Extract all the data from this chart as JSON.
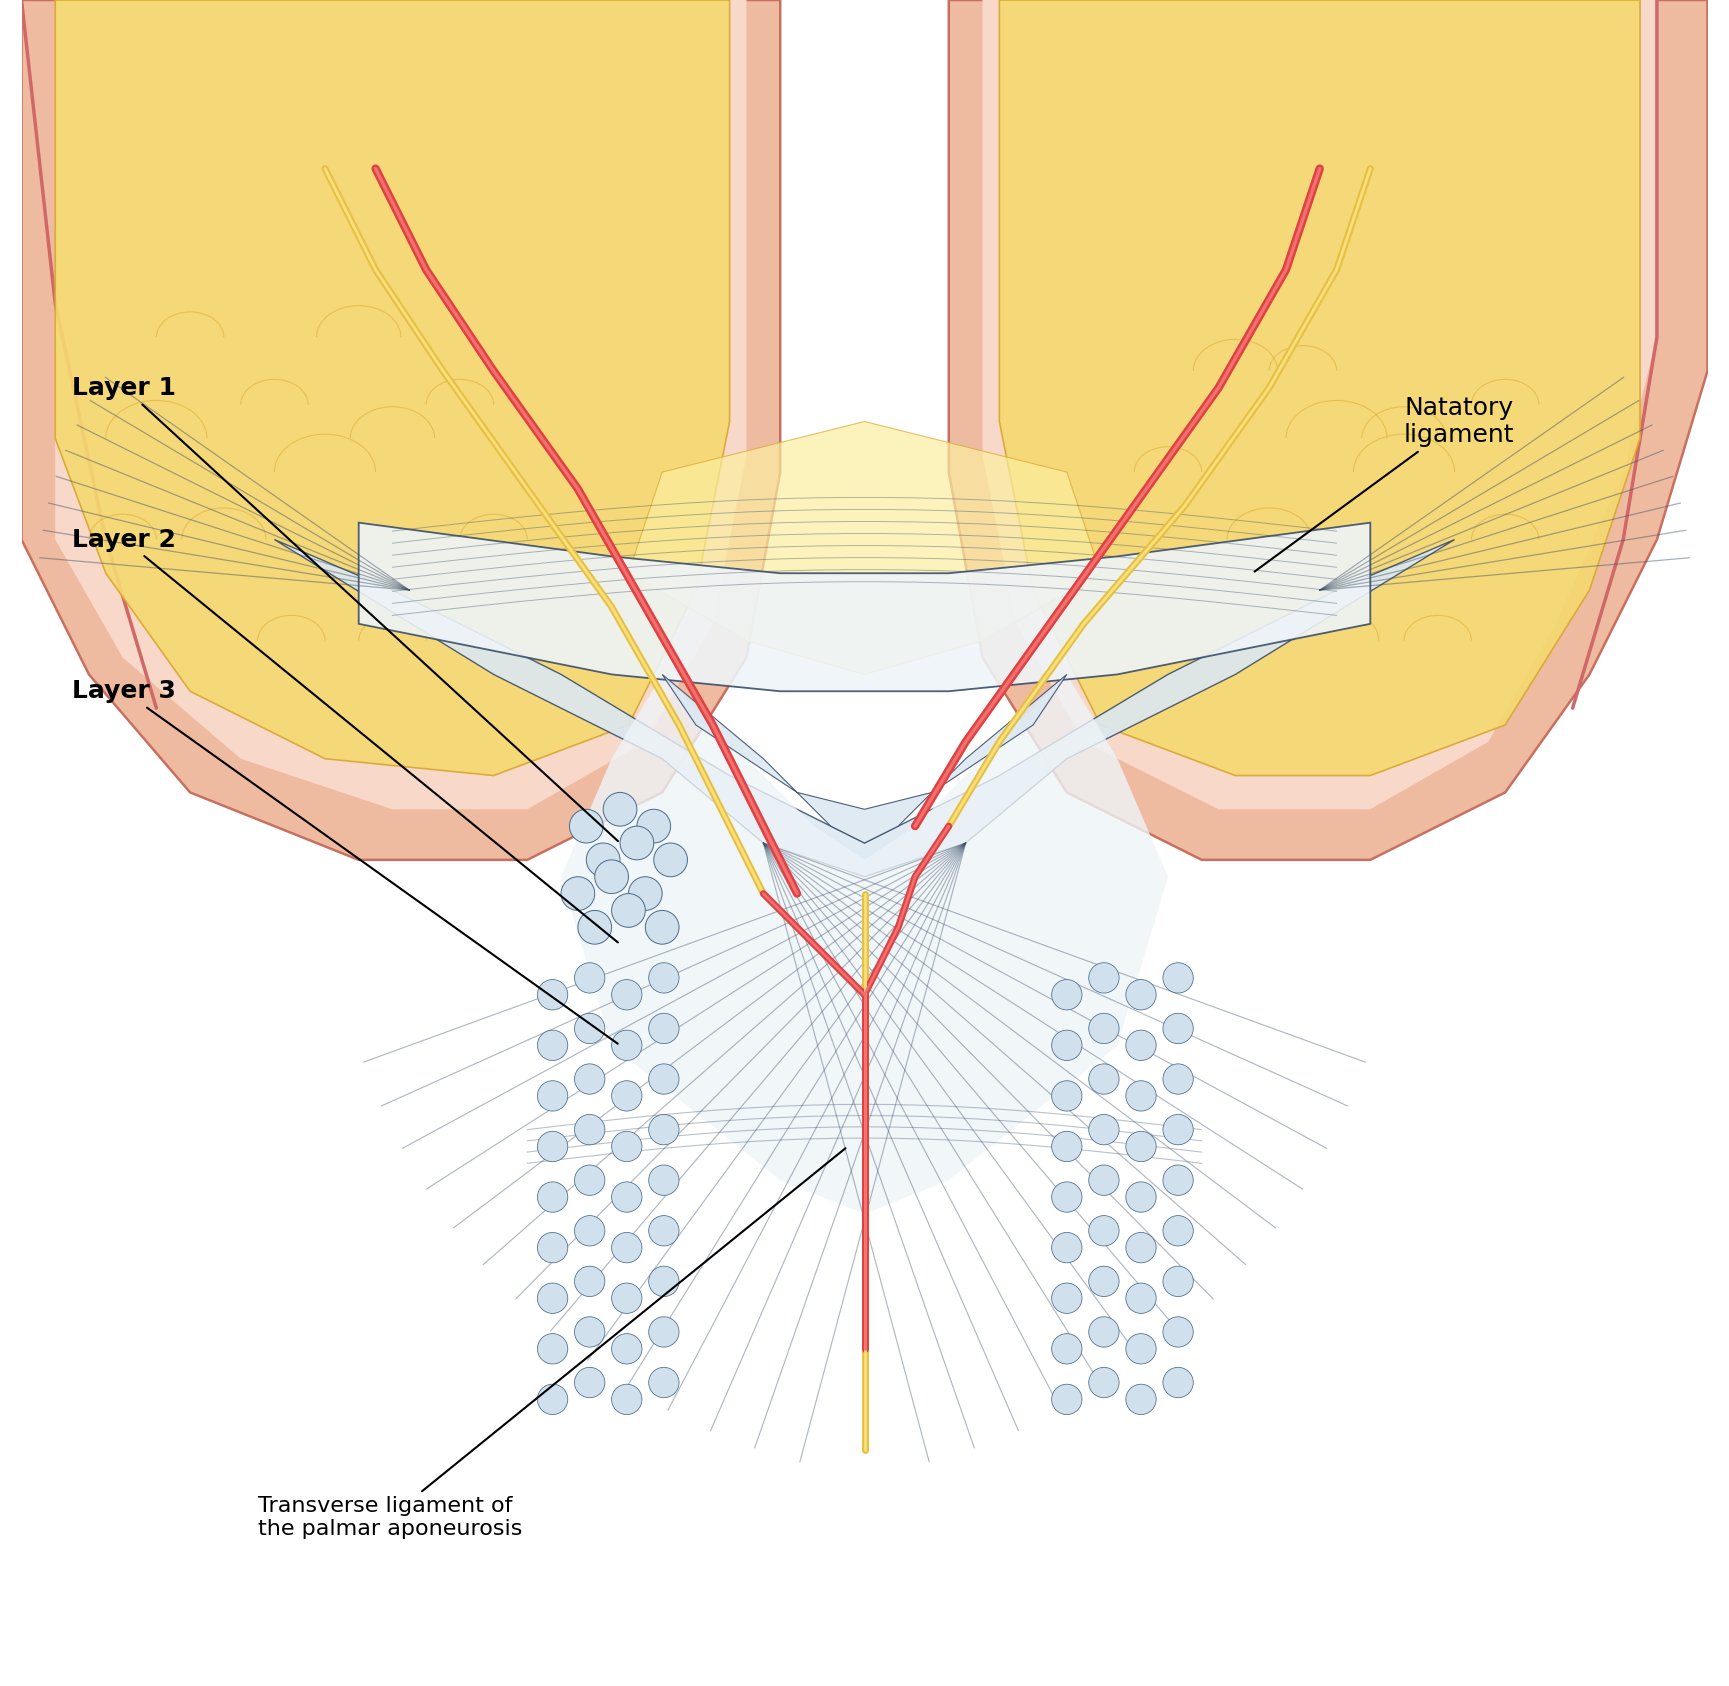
{
  "bg_color": "#ffffff",
  "skin_color": "#eebba0",
  "skin_highlight": "#f8d8c8",
  "skin_shadow": "#cc8866",
  "skin_outline": "#c87060",
  "fat_color": "#f5d870",
  "fat_light": "#fbeea0",
  "fat_shadow": "#d8a830",
  "fascia_fill": "#dce8f2",
  "fascia_light": "#eef4f8",
  "fascia_outline": "#3a4e6a",
  "artery_color": "#e04040",
  "artery_light": "#f07070",
  "nerve_color": "#e8c040",
  "nerve_light": "#f8e080",
  "tube_fill": "#d0e0ec",
  "tube_outline": "#4a6a8a",
  "text_color": "#000000",
  "label_layer1": "Layer 1",
  "label_layer2": "Layer 2",
  "label_layer3": "Layer 3",
  "label_natatory": "Natatory\nligament",
  "label_transverse": "Transverse ligament of\nthe palmar aponeurosis",
  "figsize": [
    17.29,
    16.86
  ],
  "dpi": 100
}
